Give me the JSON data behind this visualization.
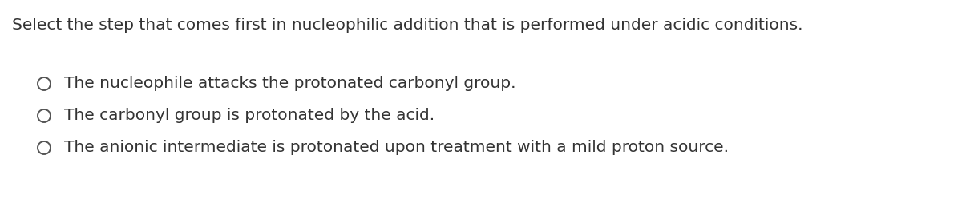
{
  "background_color": "#ffffff",
  "title": "Select the step that comes first in nucleophilic addition that is performed under acidic conditions.",
  "title_color": "#333333",
  "title_fontsize": 14.5,
  "options": [
    "The nucleophile attacks the protonated carbonyl group.",
    "The carbonyl group is protonated by the acid.",
    "The anionic intermediate is protonated upon treatment with a mild proton source."
  ],
  "option_color": "#333333",
  "option_fontsize": 14.5,
  "circle_color": "#555555",
  "circle_linewidth": 1.4
}
